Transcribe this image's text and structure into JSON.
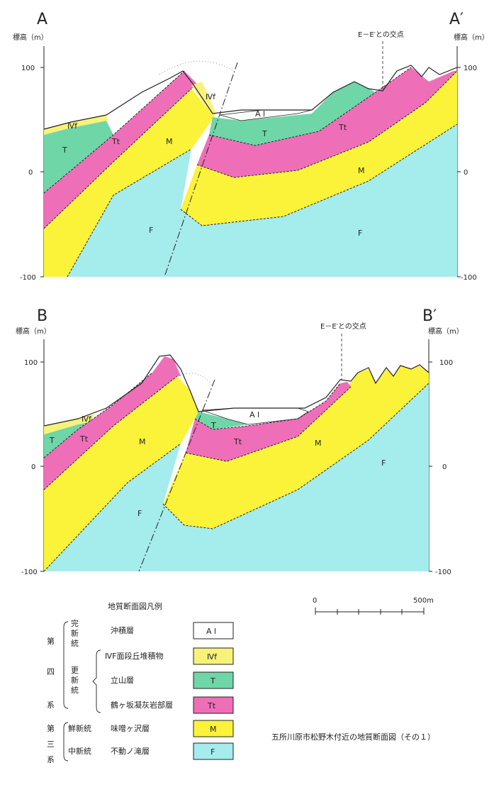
{
  "colors": {
    "Al": "#ffffff",
    "IVf": "#f7f27a",
    "T": "#6fd6a8",
    "Tt": "#ee6fb8",
    "M": "#fbf23a",
    "F": "#a5ecec",
    "outline": "#222222"
  },
  "section_a": {
    "left_label": "A",
    "right_label": "A′",
    "axis_title": "標高（m）",
    "ticks": [
      "100",
      "0",
      "-100"
    ],
    "intersection_label": "E－E′との交点",
    "unit_labels": {
      "Al": "A l",
      "IVf_left": "Ⅳf",
      "IVf_fault": "Ⅳf",
      "T_left": "T",
      "T_right": "T",
      "Tt_left": "Tt",
      "Tt_right": "Tt",
      "M_left": "M",
      "M_right": "M",
      "F_left": "F",
      "F_right": "F"
    }
  },
  "section_b": {
    "left_label": "B",
    "right_label": "B′",
    "axis_title": "標高（m）",
    "ticks": [
      "100",
      "0",
      "-100"
    ],
    "intersection_label": "E－E′との交点",
    "unit_labels": {
      "Al": "A l",
      "IVf": "Ⅳf",
      "T_left": "T",
      "T_right": "T",
      "Tt_left": "Tt",
      "Tt_right": "Tt",
      "M_left": "M",
      "M_right": "M",
      "F_left": "F",
      "F_right": "F"
    }
  },
  "scale_bar": {
    "start": "0",
    "end": "500m"
  },
  "legend": {
    "title": "地質断面図凡例",
    "groups": {
      "quaternary": [
        "第",
        "四",
        "系"
      ],
      "tertiary": [
        "第",
        "三",
        "系"
      ],
      "holocene": "完新統",
      "pleistocene": "更新統",
      "pliocene": "鮮新統",
      "miocene": "中新統"
    },
    "items": [
      {
        "name": "沖積層",
        "code": "A l"
      },
      {
        "name": "ⅣF面段丘堆積物",
        "code": "Ⅳf"
      },
      {
        "name": "立山層",
        "code": "T"
      },
      {
        "name": "鶴ヶ坂凝灰岩部層",
        "code": "Tt"
      },
      {
        "name": "味噌ヶ沢層",
        "code": "M"
      },
      {
        "name": "不動ノ滝層",
        "code": "F"
      }
    ]
  },
  "figure_title": "五所川原市松野木付近の地質断面図（その１）"
}
